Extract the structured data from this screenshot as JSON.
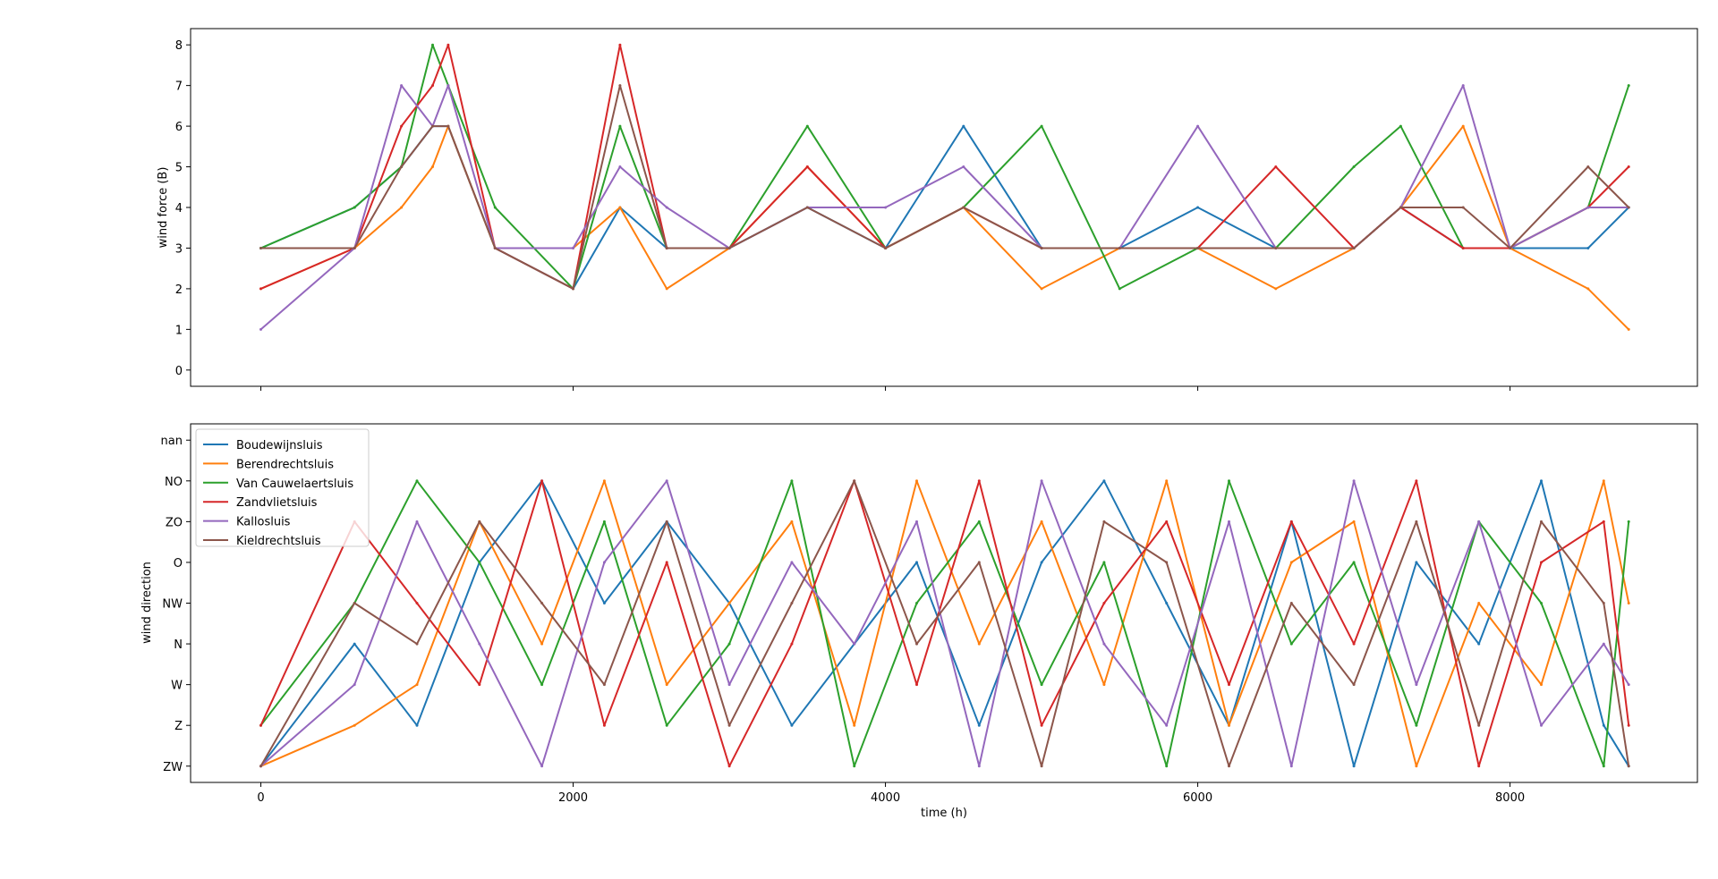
{
  "chart_data": [
    {
      "type": "line",
      "title": "",
      "xlabel": "",
      "ylabel": "wind force (B)",
      "xlim": [
        -450,
        9200
      ],
      "ylim": [
        -0.4,
        8.4
      ],
      "x_ticks": [
        0,
        2000,
        4000,
        6000,
        8000
      ],
      "x_ticklabels_shown": false,
      "y_ticks": [
        0,
        1,
        2,
        3,
        4,
        5,
        6,
        7,
        8
      ],
      "y_ticklabels": [
        "0",
        "1",
        "2",
        "3",
        "4",
        "5",
        "6",
        "7",
        "8"
      ],
      "x": [
        0,
        600,
        900,
        1100,
        1200,
        1500,
        2000,
        2300,
        2600,
        3000,
        3500,
        4000,
        4500,
        5000,
        5500,
        6000,
        6500,
        7000,
        7300,
        7700,
        8000,
        8500,
        8760
      ],
      "series": [
        {
          "name": "Boudewijnsluis",
          "color": "#1f77b4",
          "values": [
            3,
            4,
            5,
            6,
            6,
            3,
            2,
            4,
            3,
            3,
            4,
            3,
            6,
            3,
            3,
            4,
            3,
            3,
            4,
            3,
            3,
            3,
            4
          ]
        },
        {
          "name": "Berendrechtsluis",
          "color": "#ff7f0e",
          "values": [
            2,
            3,
            4,
            5,
            6,
            3,
            3,
            4,
            2,
            3,
            5,
            3,
            4,
            2,
            3,
            3,
            2,
            3,
            4,
            6,
            3,
            2,
            1
          ]
        },
        {
          "name": "Van Cauwelaertsluis",
          "color": "#2ca02c",
          "values": [
            3,
            4,
            5,
            8,
            7,
            4,
            2,
            6,
            3,
            3,
            6,
            3,
            4,
            6,
            2,
            3,
            3,
            5,
            6,
            3,
            3,
            4,
            7
          ]
        },
        {
          "name": "Zandvlietsluis",
          "color": "#d62728",
          "values": [
            2,
            3,
            6,
            7,
            8,
            3,
            2,
            8,
            3,
            3,
            5,
            3,
            4,
            3,
            3,
            3,
            5,
            3,
            4,
            3,
            3,
            4,
            5
          ]
        },
        {
          "name": "Kallosluis",
          "color": "#9467bd",
          "values": [
            1,
            3,
            7,
            6,
            7,
            3,
            3,
            5,
            4,
            3,
            4,
            4,
            5,
            3,
            3,
            6,
            3,
            3,
            4,
            7,
            3,
            4,
            4
          ]
        },
        {
          "name": "Kieldrechtsluis",
          "color": "#8c564b",
          "values": [
            3,
            3,
            5,
            6,
            6,
            3,
            2,
            7,
            3,
            3,
            4,
            3,
            4,
            3,
            3,
            3,
            3,
            3,
            4,
            4,
            3,
            5,
            4
          ]
        }
      ],
      "grid": false
    },
    {
      "type": "line",
      "title": "",
      "xlabel": "time (h)",
      "ylabel": "wind direction",
      "xlim": [
        -450,
        9200
      ],
      "ylim": [
        -0.4,
        8.4
      ],
      "x_ticks": [
        0,
        2000,
        4000,
        6000,
        8000
      ],
      "x_ticklabels": [
        "0",
        "2000",
        "4000",
        "6000",
        "8000"
      ],
      "y_ticks": [
        0,
        1,
        2,
        3,
        4,
        5,
        6,
        7,
        8
      ],
      "y_ticklabels": [
        "ZW",
        "Z",
        "W",
        "N",
        "NW",
        "O",
        "ZO",
        "NO",
        "nan"
      ],
      "x": [
        0,
        600,
        1000,
        1400,
        1800,
        2200,
        2600,
        3000,
        3400,
        3800,
        4200,
        4600,
        5000,
        5400,
        5800,
        6200,
        6600,
        7000,
        7400,
        7800,
        8200,
        8600,
        8760
      ],
      "series": [
        {
          "name": "Boudewijnsluis",
          "color": "#1f77b4",
          "values": [
            0,
            3,
            1,
            5,
            7,
            4,
            6,
            4,
            1,
            3,
            5,
            1,
            5,
            7,
            4,
            1,
            6,
            0,
            5,
            3,
            7,
            1,
            0
          ]
        },
        {
          "name": "Berendrechtsluis",
          "color": "#ff7f0e",
          "values": [
            0,
            1,
            2,
            6,
            3,
            7,
            2,
            4,
            6,
            1,
            7,
            3,
            6,
            2,
            7,
            1,
            5,
            6,
            0,
            4,
            2,
            7,
            4
          ]
        },
        {
          "name": "Van Cauwelaertsluis",
          "color": "#2ca02c",
          "values": [
            1,
            4,
            7,
            5,
            2,
            6,
            1,
            3,
            7,
            0,
            4,
            6,
            2,
            5,
            0,
            7,
            3,
            5,
            1,
            6,
            4,
            0,
            6
          ]
        },
        {
          "name": "Zandvlietsluis",
          "color": "#d62728",
          "values": [
            1,
            6,
            4,
            2,
            7,
            1,
            5,
            0,
            3,
            7,
            2,
            7,
            1,
            4,
            6,
            2,
            6,
            3,
            7,
            0,
            5,
            6,
            1
          ]
        },
        {
          "name": "Kallosluis",
          "color": "#9467bd",
          "values": [
            0,
            2,
            6,
            3,
            0,
            5,
            7,
            2,
            5,
            3,
            6,
            0,
            7,
            3,
            1,
            6,
            0,
            7,
            2,
            6,
            1,
            3,
            2
          ]
        },
        {
          "name": "Kieldrechtsluis",
          "color": "#8c564b",
          "values": [
            0,
            4,
            3,
            6,
            4,
            2,
            6,
            1,
            4,
            7,
            3,
            5,
            0,
            6,
            5,
            0,
            4,
            2,
            6,
            1,
            6,
            4,
            0
          ]
        }
      ],
      "legend": {
        "placement": "upper-left",
        "entries": [
          "Boudewijnsluis",
          "Berendrechtsluis",
          "Van Cauwelaertsluis",
          "Zandvlietsluis",
          "Kallosluis",
          "Kieldrechtsluis"
        ]
      },
      "grid": false
    }
  ]
}
